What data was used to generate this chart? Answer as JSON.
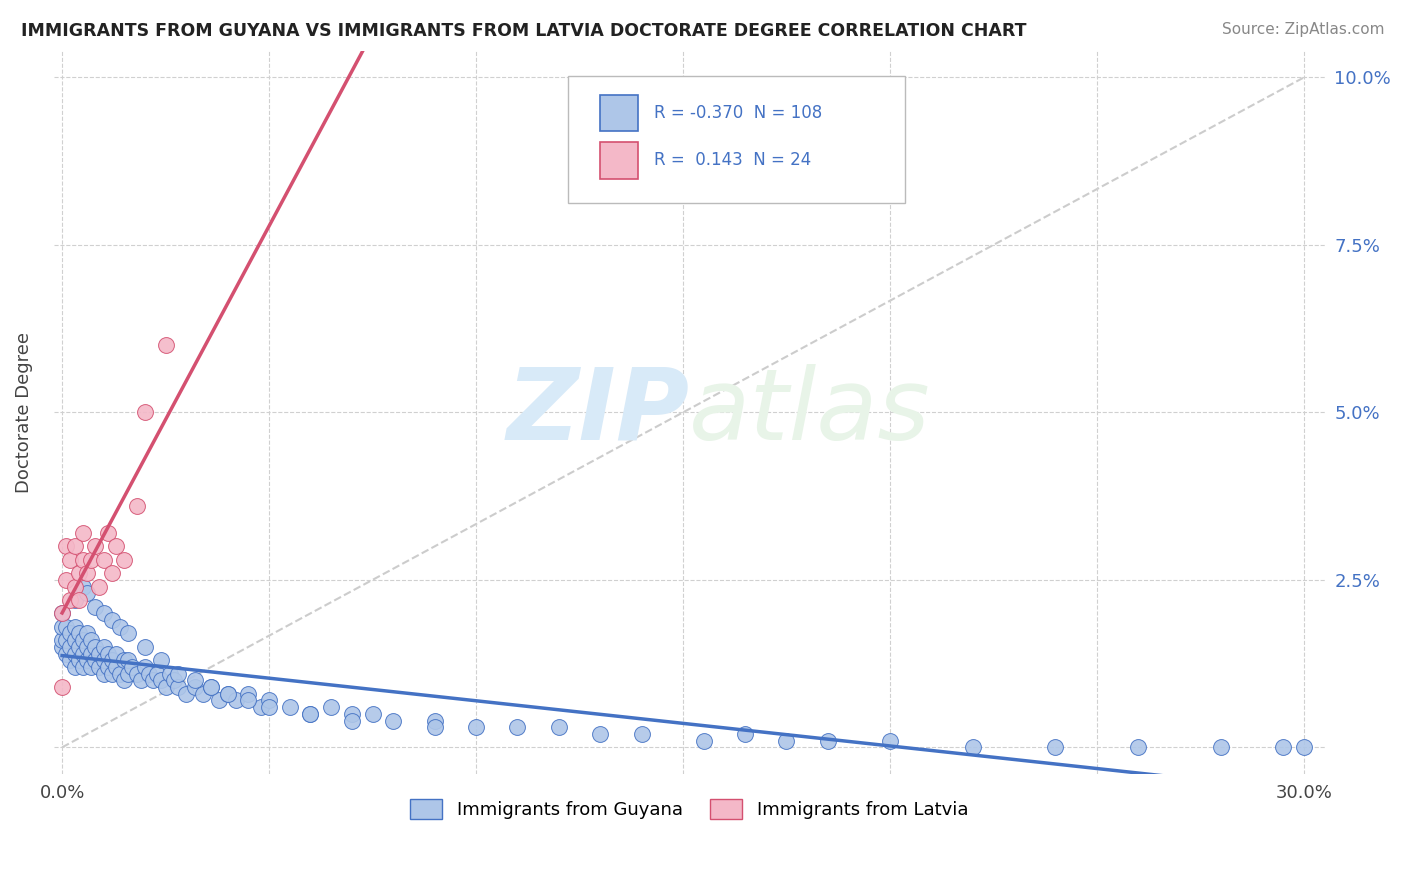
{
  "title": "IMMIGRANTS FROM GUYANA VS IMMIGRANTS FROM LATVIA DOCTORATE DEGREE CORRELATION CHART",
  "source": "Source: ZipAtlas.com",
  "ylabel": "Doctorate Degree",
  "xlim": [
    -0.002,
    0.305
  ],
  "ylim": [
    -0.004,
    0.104
  ],
  "xtick_positions": [
    0.0,
    0.05,
    0.1,
    0.15,
    0.2,
    0.25,
    0.3
  ],
  "xtick_labels": [
    "0.0%",
    "",
    "",
    "",
    "",
    "",
    "30.0%"
  ],
  "ytick_positions": [
    0.0,
    0.025,
    0.05,
    0.075,
    0.1
  ],
  "ytick_labels_right": [
    "",
    "2.5%",
    "5.0%",
    "7.5%",
    "10.0%"
  ],
  "guyana_R": -0.37,
  "guyana_N": 108,
  "latvia_R": 0.143,
  "latvia_N": 24,
  "guyana_color": "#aec6e8",
  "guyana_edge_color": "#4472c4",
  "latvia_color": "#f4b8c8",
  "latvia_edge_color": "#d45070",
  "trend_guyana_color": "#4472c4",
  "trend_latvia_color": "#d45070",
  "grid_color": "#d0d0d0",
  "diag_color": "#c0c0c0",
  "watermark_color": "#d8eaf8",
  "right_axis_color": "#4472c4",
  "guyana_x": [
    0.0,
    0.0,
    0.0,
    0.0,
    0.001,
    0.001,
    0.001,
    0.002,
    0.002,
    0.002,
    0.003,
    0.003,
    0.003,
    0.003,
    0.004,
    0.004,
    0.004,
    0.005,
    0.005,
    0.005,
    0.006,
    0.006,
    0.006,
    0.007,
    0.007,
    0.007,
    0.008,
    0.008,
    0.009,
    0.009,
    0.01,
    0.01,
    0.01,
    0.011,
    0.011,
    0.012,
    0.012,
    0.013,
    0.013,
    0.014,
    0.015,
    0.015,
    0.016,
    0.016,
    0.017,
    0.018,
    0.019,
    0.02,
    0.021,
    0.022,
    0.023,
    0.024,
    0.025,
    0.026,
    0.027,
    0.028,
    0.03,
    0.032,
    0.034,
    0.036,
    0.038,
    0.04,
    0.042,
    0.045,
    0.048,
    0.05,
    0.055,
    0.06,
    0.065,
    0.07,
    0.075,
    0.08,
    0.09,
    0.1,
    0.11,
    0.12,
    0.13,
    0.14,
    0.155,
    0.165,
    0.175,
    0.185,
    0.2,
    0.22,
    0.24,
    0.26,
    0.28,
    0.295,
    0.3,
    0.003,
    0.005,
    0.006,
    0.008,
    0.01,
    0.012,
    0.014,
    0.016,
    0.02,
    0.024,
    0.028,
    0.032,
    0.036,
    0.04,
    0.045,
    0.05,
    0.06,
    0.07,
    0.09
  ],
  "guyana_y": [
    0.015,
    0.016,
    0.018,
    0.02,
    0.014,
    0.016,
    0.018,
    0.013,
    0.015,
    0.017,
    0.012,
    0.014,
    0.016,
    0.018,
    0.013,
    0.015,
    0.017,
    0.012,
    0.014,
    0.016,
    0.013,
    0.015,
    0.017,
    0.012,
    0.014,
    0.016,
    0.013,
    0.015,
    0.012,
    0.014,
    0.011,
    0.013,
    0.015,
    0.012,
    0.014,
    0.011,
    0.013,
    0.012,
    0.014,
    0.011,
    0.01,
    0.013,
    0.011,
    0.013,
    0.012,
    0.011,
    0.01,
    0.012,
    0.011,
    0.01,
    0.011,
    0.01,
    0.009,
    0.011,
    0.01,
    0.009,
    0.008,
    0.009,
    0.008,
    0.009,
    0.007,
    0.008,
    0.007,
    0.008,
    0.006,
    0.007,
    0.006,
    0.005,
    0.006,
    0.005,
    0.005,
    0.004,
    0.004,
    0.003,
    0.003,
    0.003,
    0.002,
    0.002,
    0.001,
    0.002,
    0.001,
    0.001,
    0.001,
    0.0,
    0.0,
    0.0,
    0.0,
    0.0,
    0.0,
    0.022,
    0.024,
    0.023,
    0.021,
    0.02,
    0.019,
    0.018,
    0.017,
    0.015,
    0.013,
    0.011,
    0.01,
    0.009,
    0.008,
    0.007,
    0.006,
    0.005,
    0.004,
    0.003
  ],
  "latvia_x": [
    0.0,
    0.0,
    0.001,
    0.001,
    0.002,
    0.002,
    0.003,
    0.003,
    0.004,
    0.004,
    0.005,
    0.005,
    0.006,
    0.007,
    0.008,
    0.009,
    0.01,
    0.011,
    0.012,
    0.013,
    0.015,
    0.018,
    0.02,
    0.025
  ],
  "latvia_y": [
    0.009,
    0.02,
    0.025,
    0.03,
    0.022,
    0.028,
    0.024,
    0.03,
    0.022,
    0.026,
    0.028,
    0.032,
    0.026,
    0.028,
    0.03,
    0.024,
    0.028,
    0.032,
    0.026,
    0.03,
    0.028,
    0.036,
    0.05,
    0.06
  ]
}
